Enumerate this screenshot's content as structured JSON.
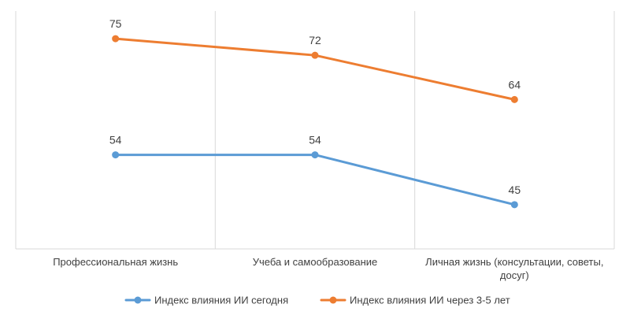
{
  "chart_data": {
    "type": "line",
    "categories": [
      "Профессиональная жизнь",
      "Учеба и самообразование",
      "Личная жизнь (консультации, советы, досуг)"
    ],
    "category_label_lines": [
      [
        "Профессиональная жизнь"
      ],
      [
        "Учеба и самообразование"
      ],
      [
        "Личная жизнь (консультации, советы,",
        "досуг)"
      ]
    ],
    "series": [
      {
        "name": "Индекс влияния ИИ сегодня",
        "values": [
          54,
          54,
          45
        ],
        "color": "#5B9BD5"
      },
      {
        "name": "Индекс влияния ИИ через 3-5 лет",
        "values": [
          75,
          72,
          64
        ],
        "color": "#ED7D31"
      }
    ],
    "title": "",
    "xlabel": "",
    "ylabel": "",
    "ylim": [
      37,
      80
    ],
    "grid": "vertical-category-separators",
    "legend": "bottom"
  }
}
